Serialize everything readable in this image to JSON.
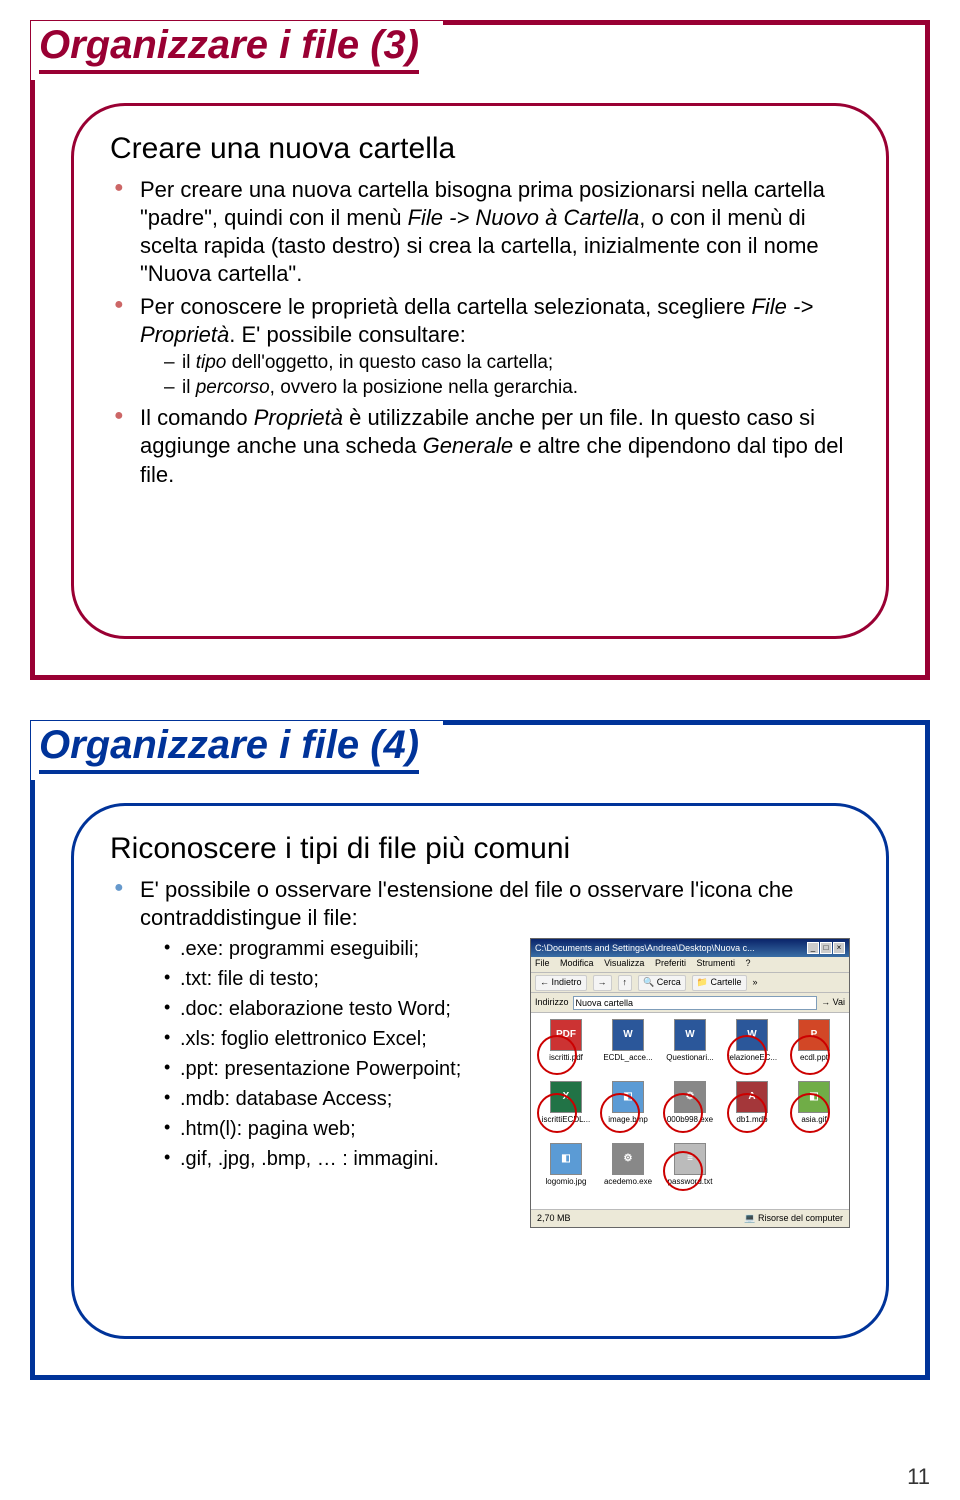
{
  "page_number": "11",
  "colors": {
    "slide1_border": "#990033",
    "slide1_title": "#990033",
    "slide1_bullet": "#cc6666",
    "slide2_border": "#003399",
    "slide2_title": "#003399",
    "slide2_bullet": "#6699cc",
    "xp_titlebar": "#0a246a"
  },
  "slide1": {
    "title": "Organizzare i file (3)",
    "subtitle": "Creare una nuova cartella",
    "b1_a": "Per creare una nuova cartella bisogna prima posizionarsi nella cartella \"padre\", quindi con il menù ",
    "b1_i1": "File -> Nuovo à Cartella",
    "b1_b": ", o con il menù di scelta rapida (tasto destro) si crea la cartella, inizialmente con il nome \"Nuova cartella\".",
    "b2_a": "Per conoscere le proprietà della cartella selezionata, scegliere ",
    "b2_i1": "File -> Proprietà",
    "b2_b": ". E' possibile consultare:",
    "d1_a": "il ",
    "d1_i": "tipo",
    "d1_b": " dell'oggetto, in questo caso la cartella;",
    "d2_a": "il ",
    "d2_i": "percorso",
    "d2_b": ", ovvero la posizione nella gerarchia.",
    "b3_a": "Il comando ",
    "b3_i": "Proprietà",
    "b3_b": " è utilizzabile anche per un file. In questo caso si aggiunge anche una scheda ",
    "b3_i2": "Generale",
    "b3_c": " e altre che dipendono dal tipo del file."
  },
  "slide2": {
    "title": "Organizzare i file (4)",
    "subtitle": "Riconoscere i tipi di file più comuni",
    "b1": "E' possibile o osservare l'estensione del file o osservare l'icona che contraddistingue il file:",
    "ext1": ".exe: programmi eseguibili;",
    "ext2": ".txt: file di testo;",
    "ext3": ".doc: elaborazione testo Word;",
    "ext4": ".xls: foglio elettronico Excel;",
    "ext5": ".ppt: presentazione Powerpoint;",
    "ext6": ".mdb: database Access;",
    "ext7": ".htm(l): pagina web;",
    "ext8": ".gif, .jpg, .bmp, … : immagini.",
    "screenshot": {
      "titlebar": "C:\\Documents and Settings\\Andrea\\Desktop\\Nuova c...",
      "menu": [
        "File",
        "Modifica",
        "Visualizza",
        "Preferiti",
        "Strumenti",
        "?"
      ],
      "toolbar_back": "Indietro",
      "toolbar_search": "Cerca",
      "toolbar_folders": "Cartelle",
      "address_label": "Indirizzo",
      "address_value": "Nuova cartella",
      "go": "Vai",
      "status_left": "2,70 MB",
      "status_right": "Risorse del computer",
      "files": [
        {
          "name": "iscritti.pdf",
          "color": "#cc3333",
          "tag": "PDF"
        },
        {
          "name": "ECDL_acce...",
          "color": "#2b579a",
          "tag": "W"
        },
        {
          "name": "Questionari...",
          "color": "#2b579a",
          "tag": "W"
        },
        {
          "name": "relazioneEC...",
          "color": "#2b579a",
          "tag": "W"
        },
        {
          "name": "ecdl.ppt",
          "color": "#d24726",
          "tag": "P"
        },
        {
          "name": "iscrittiECDL...",
          "color": "#217346",
          "tag": "X"
        },
        {
          "name": "image.bmp",
          "color": "#5b9bd5",
          "tag": "◧"
        },
        {
          "name": "000b998.exe",
          "color": "#888",
          "tag": "⚙"
        },
        {
          "name": "db1.mdb",
          "color": "#a4373a",
          "tag": "A"
        },
        {
          "name": "asia.gif",
          "color": "#70ad47",
          "tag": "◧"
        },
        {
          "name": "logomio.jpg",
          "color": "#5b9bd5",
          "tag": "◧"
        },
        {
          "name": "acedemo.exe",
          "color": "#888",
          "tag": "⚙"
        },
        {
          "name": "password.txt",
          "color": "#bbb",
          "tag": "≡"
        }
      ]
    }
  }
}
